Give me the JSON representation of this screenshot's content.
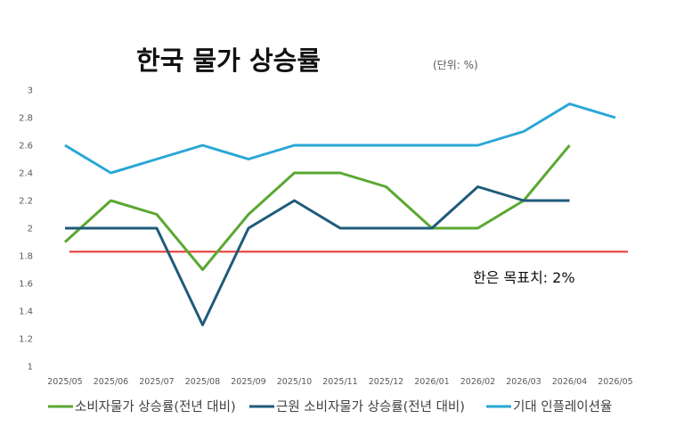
{
  "chart_data": {
    "type": "line",
    "title": "한국 물가 상승률",
    "subtitle": "(단위: %)",
    "xlabel": "",
    "ylabel": "",
    "categories": [
      "2025/05",
      "2025/06",
      "2025/07",
      "2025/08",
      "2025/09",
      "2025/10",
      "2025/11",
      "2025/12",
      "2026/01",
      "2026/02",
      "2026/03",
      "2026/04",
      "2026/05"
    ],
    "ylim": [
      1,
      3
    ],
    "yticks": [
      "1",
      "1.2",
      "1.4",
      "1.6",
      "1.8",
      "2",
      "2.2",
      "2.4",
      "2.6",
      "2.8",
      "3"
    ],
    "grid": false,
    "legend_position": "bottom",
    "series": [
      {
        "name": "소비자물가 상승률(전년 대비)",
        "color": "#5aa832",
        "values": [
          1.9,
          2.2,
          2.1,
          1.7,
          2.1,
          2.4,
          2.4,
          2.3,
          2.0,
          2.0,
          2.2,
          2.6,
          null
        ]
      },
      {
        "name": "근원 소비자물가 상승률(전년 대비)",
        "color": "#1f5b7a",
        "values": [
          2.0,
          2.0,
          2.0,
          1.3,
          2.0,
          2.2,
          2.0,
          2.0,
          2.0,
          2.3,
          2.2,
          2.2,
          null
        ]
      },
      {
        "name": "기대 인플레이션율",
        "color": "#2aa7d6",
        "values": [
          2.6,
          2.4,
          2.5,
          2.6,
          2.5,
          2.6,
          2.6,
          2.6,
          2.6,
          2.6,
          2.7,
          2.9,
          2.8
        ]
      }
    ],
    "target_line": {
      "value": 1.83,
      "color": "#e8322c",
      "label": "한은 목표치: 2%"
    }
  }
}
